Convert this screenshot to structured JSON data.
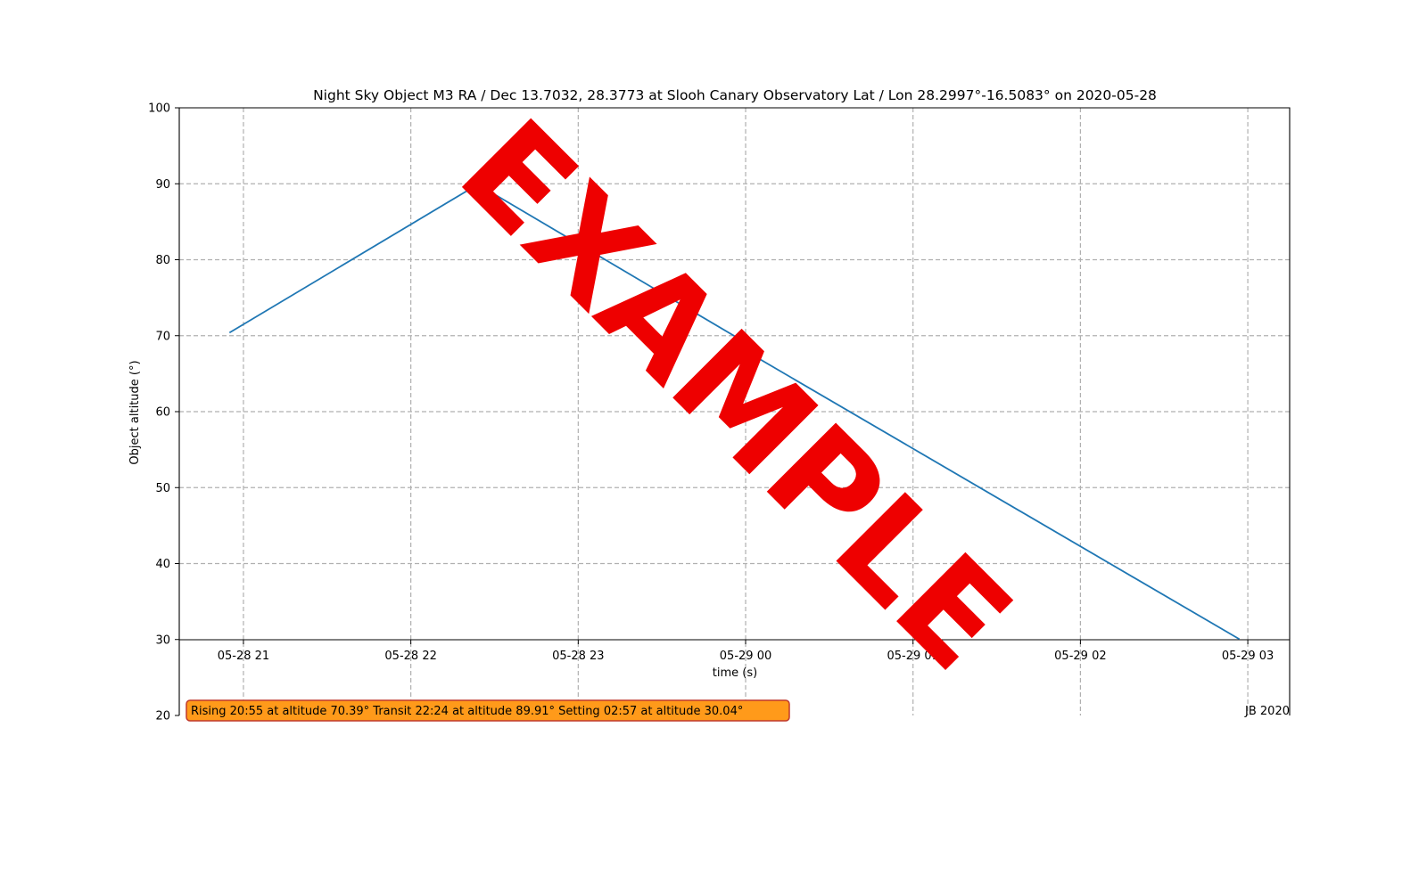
{
  "chart_data": {
    "type": "line",
    "title": "Night Sky Object M3 RA / Dec 13.7032, 28.3773 at Slooh Canary Observatory Lat / Lon 28.2997°-16.5083° on 2020-05-28",
    "xlabel": "time (s)",
    "ylabel": "Object altitude (°)",
    "x_ticks": [
      "05-28 21",
      "05-28 22",
      "05-28 23",
      "05-29 00",
      "05-29 01",
      "05-29 02",
      "05-29 03"
    ],
    "x_range": [
      "2020-05-28 20:37",
      "2020-05-29 03:15"
    ],
    "y_ticks": [
      20,
      30,
      40,
      50,
      60,
      70,
      80,
      90,
      100
    ],
    "ylim": [
      20,
      100
    ],
    "grid": true,
    "series": [
      {
        "color": "#1f77b4",
        "points": [
          {
            "x": "2020-05-28 20:55",
            "y": 70.39
          },
          {
            "x": "2020-05-28 22:24",
            "y": 89.91
          },
          {
            "x": "2020-05-28 23:59",
            "y": 69.3
          },
          {
            "x": "2020-05-29 00:00",
            "y": 68.0
          },
          {
            "x": "2020-05-29 02:57",
            "y": 30.04
          }
        ]
      }
    ],
    "annotation": "Rising 20:55 at altitude 70.39° Transit 22:24 at altitude 89.91° Setting 02:57 at altitude 30.04°",
    "credit": "JB 2020",
    "watermark": "EXAMPLE"
  },
  "colors": {
    "series": "#1f77b4",
    "annotation_fill": "#ff9a1a",
    "annotation_border": "#c0392b",
    "watermark": "#ee0000"
  }
}
